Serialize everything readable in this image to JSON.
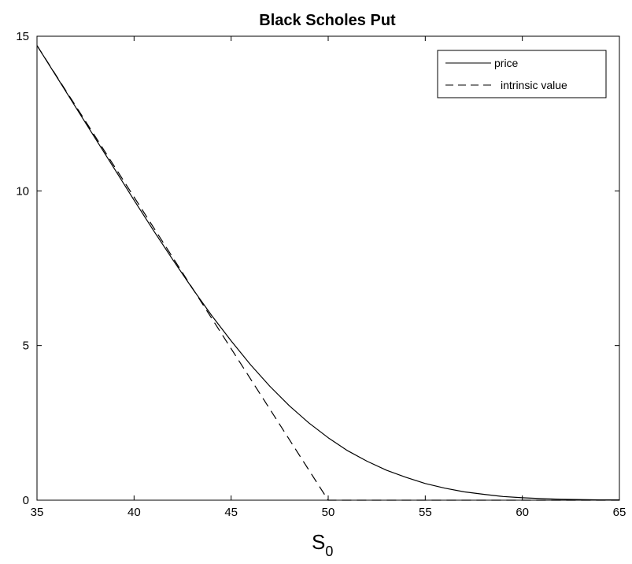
{
  "chart_data": {
    "type": "line",
    "title": "Black Scholes Put",
    "xlabel": "S",
    "xlabel_subscript": "0",
    "ylabel": "",
    "xlim": [
      35,
      65
    ],
    "ylim": [
      0,
      15
    ],
    "x_ticks": [
      35,
      40,
      45,
      50,
      55,
      60,
      65
    ],
    "y_ticks": [
      0,
      5,
      10,
      15
    ],
    "grid": false,
    "legend_position": "top-right",
    "series": [
      {
        "name": "price",
        "style": "solid",
        "color": "#000000",
        "x": [
          35,
          36,
          37,
          38,
          39,
          40,
          41,
          42,
          43,
          44,
          45,
          46,
          47,
          48,
          49,
          50,
          51,
          52,
          53,
          54,
          55,
          56,
          57,
          58,
          59,
          60,
          61,
          62,
          63,
          64,
          65
        ],
        "y": [
          14.7,
          13.7,
          12.7,
          11.7,
          10.7,
          9.7,
          8.72,
          7.77,
          6.85,
          5.97,
          5.15,
          4.38,
          3.68,
          3.05,
          2.5,
          2.02,
          1.6,
          1.26,
          0.97,
          0.74,
          0.54,
          0.39,
          0.27,
          0.19,
          0.12,
          0.08,
          0.05,
          0.03,
          0.02,
          0.01,
          0.01
        ]
      },
      {
        "name": "intrinsic value",
        "style": "dashed",
        "color": "#000000",
        "x": [
          35,
          50,
          65
        ],
        "y": [
          14.7,
          0,
          0
        ]
      }
    ]
  }
}
